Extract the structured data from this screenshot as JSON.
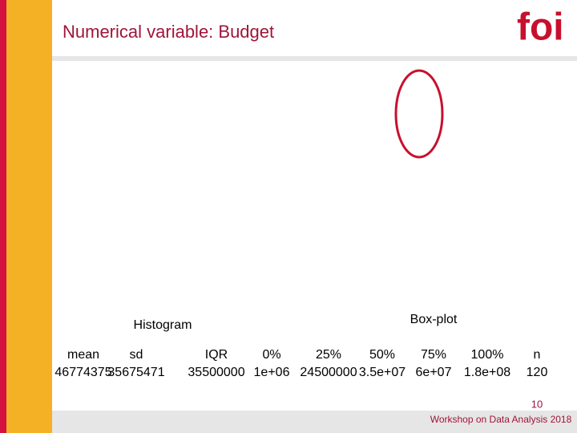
{
  "header": {
    "title": "Numerical variable: Budget",
    "logo": "foi"
  },
  "labels": {
    "histogram": "Histogram",
    "boxplot": "Box-plot"
  },
  "table": {
    "header": [
      "mean",
      "sd",
      "IQR",
      "0%",
      "25%",
      "50%",
      "75%",
      "100%",
      "n"
    ],
    "rows": [
      [
        "46774375",
        "35675471",
        "35500000",
        "1e+06",
        "24500000",
        "3.5e+07",
        "6e+07",
        "1.8e+08",
        "120"
      ]
    ]
  },
  "footer": {
    "page": "10",
    "text": "Workshop on Data Analysis 2018"
  }
}
